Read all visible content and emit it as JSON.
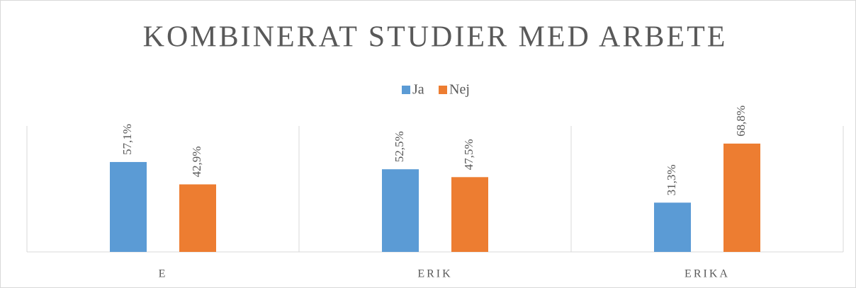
{
  "chart_data": {
    "type": "bar",
    "title": "KOMBINERAT STUDIER MED ARBETE",
    "categories": [
      "E",
      "ERIK",
      "ERIKA"
    ],
    "series": [
      {
        "name": "Ja",
        "color": "#5b9bd5",
        "values": [
          57.1,
          52.5,
          31.3
        ],
        "value_labels": [
          "57,1%",
          "52,5%",
          "31,3%"
        ]
      },
      {
        "name": "Nej",
        "color": "#ed7d31",
        "values": [
          42.9,
          47.5,
          68.8
        ],
        "value_labels": [
          "42,9%",
          "47,5%",
          "68,8%"
        ]
      }
    ],
    "ylim": [
      0,
      80
    ],
    "legend": "top"
  }
}
